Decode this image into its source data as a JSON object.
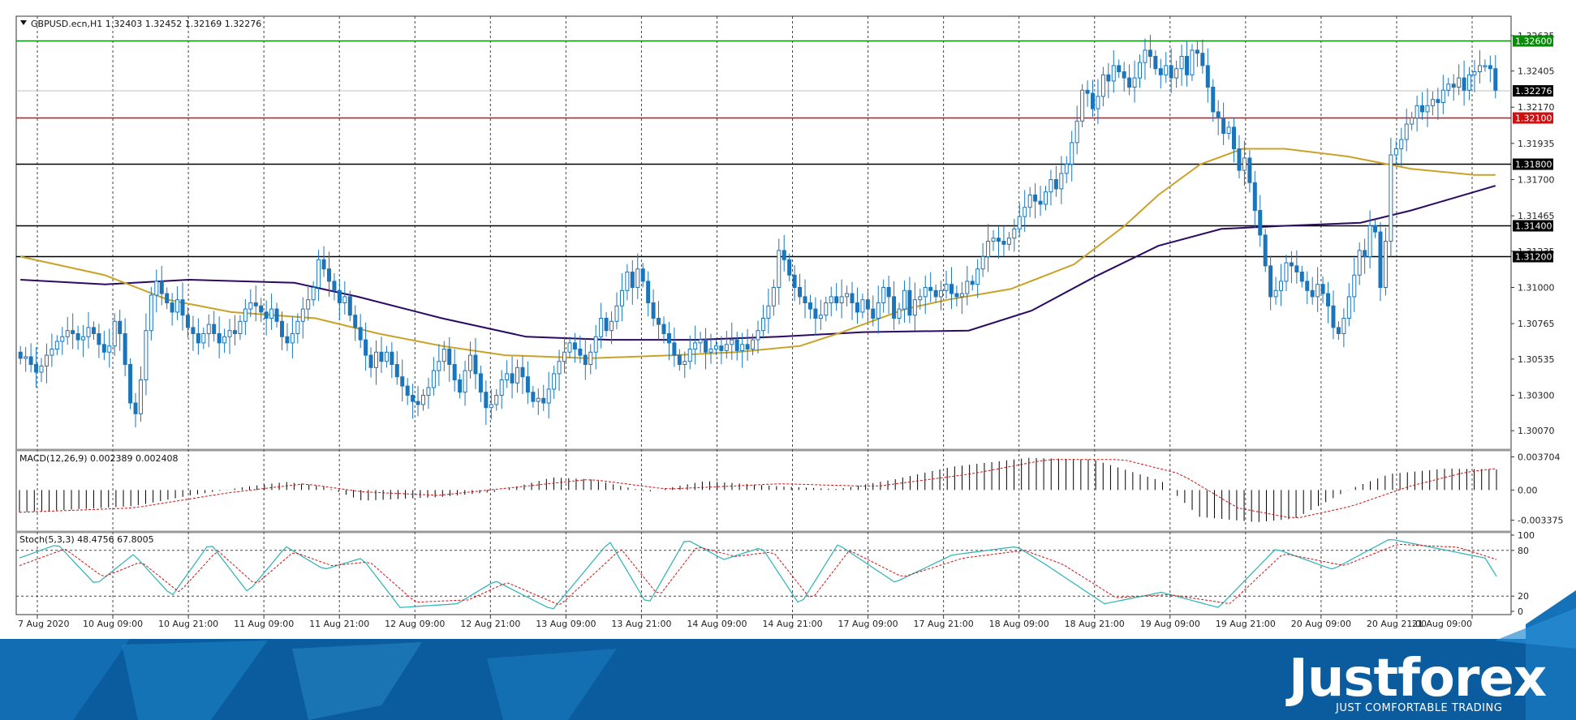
{
  "header": {
    "main": "GBPUSD.ecn,H1  1.32403 1.32452 1.32169 1.32276",
    "macd": "MACD(12,26,9) 0.002389 0.002408",
    "stoch": "Stoch(5,3,3) 48.4756 67.8005"
  },
  "brand": {
    "name": "Justforex",
    "tagline": "JUST COMFORTABLE TRADING"
  },
  "colors": {
    "bull": "#1b75bb",
    "bear": "#1b75bb",
    "ma_fast": "#c9a227",
    "ma_slow": "#2b0a63",
    "level_green": "#0a8a0a",
    "level_red": "#d01010",
    "level_black": "#000000",
    "stoch_main": "#2ab3b3",
    "stoch_signal": "#d01010",
    "macd_signal": "#d01010",
    "brand_bg": "#0a5c9e"
  },
  "chart_data": [
    {
      "type": "candlestick",
      "symbol": "GBPUSD.ecn",
      "timeframe": "H1",
      "ylim": [
        1.2995,
        1.3275
      ],
      "price_ticks": [
        "1.32635",
        "1.32405",
        "1.32170",
        "1.31935",
        "1.31700",
        "1.31465",
        "1.31235",
        "1.31000",
        "1.30765",
        "1.30535",
        "1.30300",
        "1.30070"
      ],
      "time_labels": [
        "7 Aug 2020",
        "10 Aug 09:00",
        "10 Aug 21:00",
        "11 Aug 09:00",
        "11 Aug 21:00",
        "12 Aug 09:00",
        "12 Aug 21:00",
        "13 Aug 09:00",
        "13 Aug 21:00",
        "14 Aug 09:00",
        "14 Aug 21:00",
        "17 Aug 09:00",
        "17 Aug 21:00",
        "18 Aug 09:00",
        "18 Aug 21:00",
        "19 Aug 09:00",
        "19 Aug 21:00",
        "20 Aug 09:00",
        "20 Aug 21:00",
        "21 Aug 09:00"
      ],
      "horizontal_levels": [
        {
          "value": 1.326,
          "label": "1.32600",
          "color": "#0a8a0a"
        },
        {
          "value": 1.321,
          "label": "1.32100",
          "color": "#d01010"
        },
        {
          "value": 1.318,
          "label": "1.31800",
          "color": "#000000"
        },
        {
          "value": 1.314,
          "label": "1.31400",
          "color": "#000000"
        },
        {
          "value": 1.312,
          "label": "1.31200",
          "color": "#000000"
        }
      ],
      "current_price": {
        "value": 1.32276,
        "label": "1.32276"
      },
      "ma_fast_path": [
        [
          0,
          1.312
        ],
        [
          20,
          1.3108
        ],
        [
          35,
          1.3092
        ],
        [
          50,
          1.3084
        ],
        [
          70,
          1.308
        ],
        [
          85,
          1.307
        ],
        [
          100,
          1.3062
        ],
        [
          115,
          1.3056
        ],
        [
          135,
          1.3054
        ],
        [
          155,
          1.3056
        ],
        [
          170,
          1.3058
        ],
        [
          185,
          1.3062
        ],
        [
          195,
          1.3071
        ],
        [
          210,
          1.3086
        ],
        [
          220,
          1.3092
        ],
        [
          235,
          1.3099
        ],
        [
          250,
          1.3115
        ],
        [
          262,
          1.314
        ],
        [
          270,
          1.316
        ],
        [
          280,
          1.318
        ],
        [
          290,
          1.319
        ],
        [
          300,
          1.319
        ],
        [
          315,
          1.3185
        ],
        [
          330,
          1.3177
        ],
        [
          345,
          1.3173
        ],
        [
          350,
          1.3173
        ]
      ],
      "ma_slow_path": [
        [
          0,
          1.3105
        ],
        [
          20,
          1.3102
        ],
        [
          40,
          1.3105
        ],
        [
          65,
          1.3103
        ],
        [
          80,
          1.3094
        ],
        [
          100,
          1.308
        ],
        [
          120,
          1.3068
        ],
        [
          140,
          1.3066
        ],
        [
          160,
          1.3066
        ],
        [
          180,
          1.3068
        ],
        [
          200,
          1.3071
        ],
        [
          225,
          1.3072
        ],
        [
          240,
          1.3085
        ],
        [
          255,
          1.3107
        ],
        [
          270,
          1.3127
        ],
        [
          285,
          1.3138
        ],
        [
          300,
          1.314
        ],
        [
          318,
          1.3142
        ],
        [
          330,
          1.315
        ],
        [
          340,
          1.3158
        ],
        [
          350,
          1.3166
        ]
      ],
      "closes": [
        1.3054,
        1.3055,
        1.305,
        1.3045,
        1.3049,
        1.3056,
        1.306,
        1.3065,
        1.3068,
        1.3072,
        1.307,
        1.3066,
        1.3068,
        1.3074,
        1.307,
        1.3063,
        1.3058,
        1.3062,
        1.3078,
        1.307,
        1.305,
        1.3025,
        1.3018,
        1.304,
        1.3072,
        1.3095,
        1.3104,
        1.3096,
        1.309,
        1.3084,
        1.3092,
        1.3082,
        1.3074,
        1.307,
        1.3064,
        1.307,
        1.3076,
        1.307,
        1.3064,
        1.3068,
        1.3072,
        1.307,
        1.3078,
        1.3086,
        1.309,
        1.3088,
        1.3084,
        1.308,
        1.3086,
        1.3078,
        1.3068,
        1.3064,
        1.307,
        1.3078,
        1.3086,
        1.3092,
        1.31,
        1.3118,
        1.3112,
        1.3104,
        1.3098,
        1.309,
        1.3094,
        1.3082,
        1.3074,
        1.3066,
        1.3056,
        1.3048,
        1.3058,
        1.3052,
        1.3058,
        1.305,
        1.3042,
        1.3036,
        1.303,
        1.3026,
        1.3024,
        1.303,
        1.3035,
        1.3046,
        1.3052,
        1.306,
        1.305,
        1.304,
        1.3032,
        1.3046,
        1.3056,
        1.3044,
        1.3032,
        1.3022,
        1.3024,
        1.303,
        1.304,
        1.3044,
        1.3038,
        1.3048,
        1.3042,
        1.3032,
        1.3026,
        1.3028,
        1.3025,
        1.3034,
        1.3044,
        1.3052,
        1.3058,
        1.3064,
        1.306,
        1.3056,
        1.305,
        1.3058,
        1.3068,
        1.308,
        1.3072,
        1.3078,
        1.3088,
        1.3098,
        1.311,
        1.31,
        1.3112,
        1.3104,
        1.309,
        1.308,
        1.3076,
        1.307,
        1.3064,
        1.3056,
        1.305,
        1.3052,
        1.306,
        1.3064,
        1.3066,
        1.3058,
        1.306,
        1.3062,
        1.3059,
        1.3063,
        1.3066,
        1.3059,
        1.3063,
        1.306,
        1.3066,
        1.3072,
        1.308,
        1.3088,
        1.31,
        1.3124,
        1.3118,
        1.3108,
        1.31,
        1.3094,
        1.309,
        1.3086,
        1.308,
        1.3082,
        1.309,
        1.3094,
        1.309,
        1.3094,
        1.3096,
        1.309,
        1.3084,
        1.3092,
        1.3086,
        1.308,
        1.309,
        1.31,
        1.3094,
        1.308,
        1.3086,
        1.3098,
        1.3082,
        1.3092,
        1.3094,
        1.31,
        1.3098,
        1.3094,
        1.3098,
        1.3102,
        1.3096,
        1.3094,
        1.3096,
        1.3104,
        1.3102,
        1.3112,
        1.312,
        1.313,
        1.3132,
        1.313,
        1.3128,
        1.3132,
        1.3138,
        1.3146,
        1.3152,
        1.316,
        1.3156,
        1.3154,
        1.3162,
        1.317,
        1.3164,
        1.3174,
        1.318,
        1.3194,
        1.3208,
        1.3228,
        1.3226,
        1.3216,
        1.3224,
        1.3238,
        1.3234,
        1.3244,
        1.324,
        1.3236,
        1.323,
        1.3236,
        1.3246,
        1.3254,
        1.325,
        1.3242,
        1.3238,
        1.3244,
        1.3236,
        1.3242,
        1.325,
        1.3238,
        1.3254,
        1.3252,
        1.3244,
        1.323,
        1.3214,
        1.321,
        1.32,
        1.3204,
        1.319,
        1.3176,
        1.3184,
        1.3168,
        1.315,
        1.3134,
        1.3114,
        1.3094,
        1.3098,
        1.3104,
        1.3116,
        1.3114,
        1.311,
        1.3104,
        1.3098,
        1.3094,
        1.3102,
        1.3096,
        1.3088,
        1.3074,
        1.307,
        1.308,
        1.3094,
        1.3108,
        1.3124,
        1.312,
        1.314,
        1.3136,
        1.31,
        1.313,
        1.3186,
        1.319,
        1.3196,
        1.3206,
        1.321,
        1.3218,
        1.3214,
        1.3218,
        1.3222,
        1.322,
        1.3228,
        1.3232,
        1.323,
        1.3236,
        1.3228,
        1.3238,
        1.324,
        1.3244,
        1.3244,
        1.3242,
        1.3228
      ],
      "macd": {
        "ylim": [
          -0.0045,
          0.0042
        ],
        "ticks": [
          "0.003704",
          "0.00",
          "-0.003375"
        ],
        "histogram_profile": [
          [
            0,
            -0.0025
          ],
          [
            30,
            -0.0018
          ],
          [
            45,
            -0.0006
          ],
          [
            60,
            0.0004
          ],
          [
            70,
            0.0009
          ],
          [
            80,
            0.0004
          ],
          [
            90,
            -0.0012
          ],
          [
            110,
            -0.0008
          ],
          [
            125,
            -0.0002
          ],
          [
            140,
            0.0014
          ],
          [
            150,
            0.0012
          ],
          [
            165,
            -0.0002
          ],
          [
            180,
            0.001
          ],
          [
            200,
            0.0004
          ],
          [
            215,
            0.0001
          ],
          [
            230,
            0.0012
          ],
          [
            245,
            0.0026
          ],
          [
            265,
            0.0036
          ],
          [
            282,
            0.0034
          ],
          [
            300,
            0.001
          ],
          [
            310,
            -0.003
          ],
          [
            325,
            -0.0036
          ],
          [
            335,
            -0.0032
          ],
          [
            350,
            0.0002
          ],
          [
            360,
            0.0018
          ],
          [
            375,
            0.0024
          ],
          [
            388,
            0.0023
          ]
        ],
        "signal_profile": [
          [
            0,
            -0.0025
          ],
          [
            30,
            -0.002
          ],
          [
            55,
            -0.0003
          ],
          [
            75,
            0.0007
          ],
          [
            90,
            -0.0002
          ],
          [
            110,
            -0.0006
          ],
          [
            130,
            0.0003
          ],
          [
            150,
            0.0012
          ],
          [
            170,
            0.0001
          ],
          [
            200,
            0.0007
          ],
          [
            225,
            0.0004
          ],
          [
            250,
            0.0018
          ],
          [
            270,
            0.0034
          ],
          [
            290,
            0.0034
          ],
          [
            305,
            0.0018
          ],
          [
            320,
            -0.002
          ],
          [
            335,
            -0.0032
          ],
          [
            350,
            -0.0018
          ],
          [
            365,
            0.0004
          ],
          [
            380,
            0.002
          ],
          [
            388,
            0.0024
          ]
        ]
      },
      "stochastic": {
        "ylim": [
          0,
          100
        ],
        "ticks": [
          "100",
          "80",
          "20",
          "0"
        ],
        "levels": [
          20,
          80
        ],
        "main_profile": [
          [
            0,
            70
          ],
          [
            10,
            88
          ],
          [
            20,
            35
          ],
          [
            30,
            75
          ],
          [
            40,
            20
          ],
          [
            50,
            90
          ],
          [
            60,
            25
          ],
          [
            70,
            85
          ],
          [
            80,
            55
          ],
          [
            90,
            70
          ],
          [
            100,
            5
          ],
          [
            115,
            10
          ],
          [
            125,
            40
          ],
          [
            140,
            2
          ],
          [
            155,
            92
          ],
          [
            165,
            8
          ],
          [
            175,
            95
          ],
          [
            185,
            68
          ],
          [
            195,
            84
          ],
          [
            205,
            8
          ],
          [
            215,
            88
          ],
          [
            230,
            38
          ],
          [
            245,
            74
          ],
          [
            262,
            85
          ],
          [
            270,
            60
          ],
          [
            285,
            10
          ],
          [
            300,
            25
          ],
          [
            315,
            5
          ],
          [
            330,
            82
          ],
          [
            345,
            55
          ],
          [
            360,
            95
          ],
          [
            375,
            80
          ],
          [
            385,
            70
          ],
          [
            388,
            46
          ]
        ],
        "signal_profile": [
          [
            0,
            60
          ],
          [
            12,
            82
          ],
          [
            22,
            45
          ],
          [
            32,
            65
          ],
          [
            42,
            25
          ],
          [
            52,
            80
          ],
          [
            62,
            35
          ],
          [
            72,
            78
          ],
          [
            82,
            60
          ],
          [
            92,
            65
          ],
          [
            104,
            12
          ],
          [
            118,
            15
          ],
          [
            128,
            38
          ],
          [
            142,
            8
          ],
          [
            158,
            82
          ],
          [
            168,
            20
          ],
          [
            178,
            85
          ],
          [
            188,
            72
          ],
          [
            198,
            78
          ],
          [
            208,
            15
          ],
          [
            218,
            80
          ],
          [
            232,
            45
          ],
          [
            248,
            70
          ],
          [
            264,
            80
          ],
          [
            274,
            62
          ],
          [
            288,
            18
          ],
          [
            302,
            22
          ],
          [
            318,
            10
          ],
          [
            332,
            76
          ],
          [
            348,
            60
          ],
          [
            362,
            88
          ],
          [
            378,
            84
          ],
          [
            388,
            68
          ]
        ]
      }
    }
  ]
}
